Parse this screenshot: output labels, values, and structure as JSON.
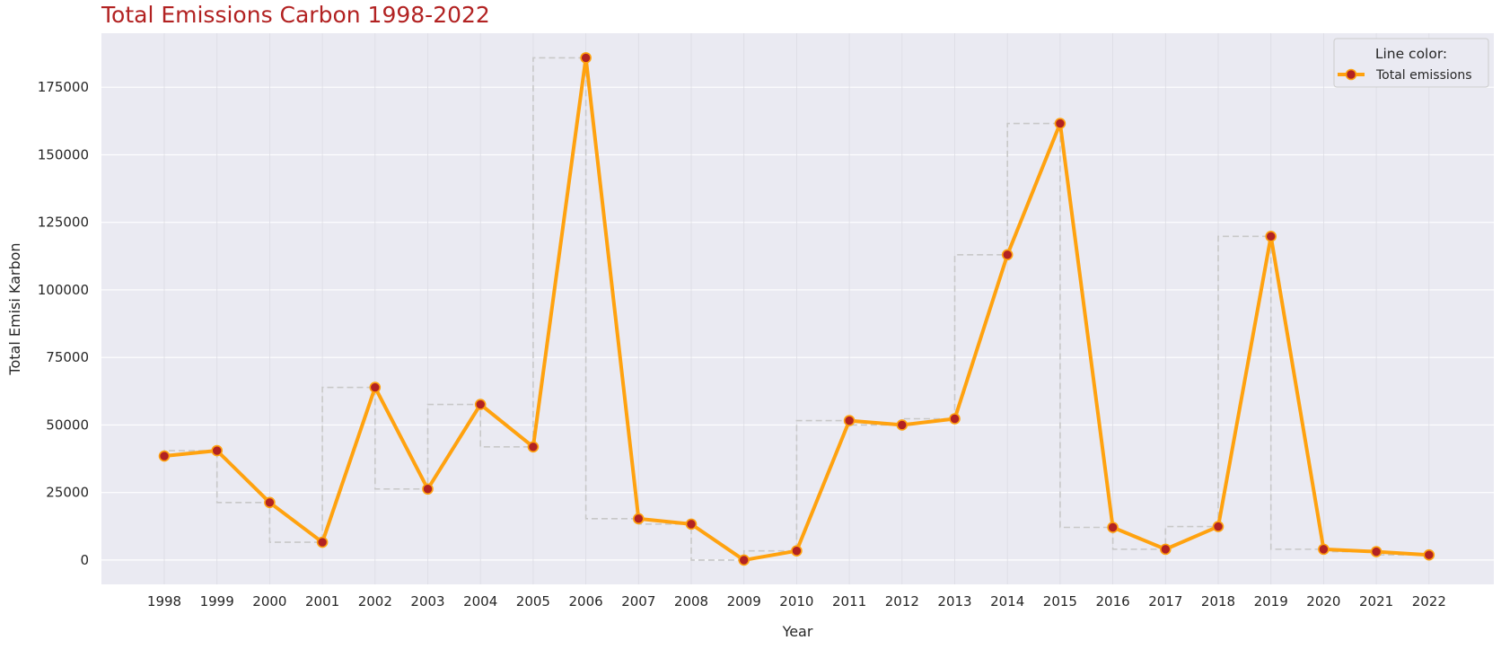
{
  "chart_data": {
    "type": "line",
    "title": "Total Emissions Carbon 1998-2022",
    "xlabel": "Year",
    "ylabel": "Total Emisi Karbon",
    "x": [
      1998,
      1999,
      2000,
      2001,
      2002,
      2003,
      2004,
      2005,
      2006,
      2007,
      2008,
      2009,
      2010,
      2011,
      2012,
      2013,
      2014,
      2015,
      2016,
      2017,
      2018,
      2019,
      2020,
      2021,
      2022
    ],
    "series": [
      {
        "name": "Total emissions",
        "values": [
          38500,
          40500,
          21300,
          6600,
          63900,
          26300,
          57600,
          41900,
          185900,
          15300,
          13300,
          0,
          3400,
          51600,
          50000,
          52300,
          113000,
          161600,
          12100,
          4000,
          12400,
          119800,
          4000,
          3100,
          1900
        ]
      }
    ],
    "step_overlay": true,
    "ylim": [
      -9000,
      195000
    ],
    "yticks": [
      0,
      25000,
      50000,
      75000,
      100000,
      125000,
      150000,
      175000
    ],
    "grid": true,
    "legend": {
      "title": "Line color:",
      "position": "top-right"
    },
    "colors": {
      "line": "#FFA20F",
      "marker_fill": "#B22222",
      "marker_edge": "#FFA20F",
      "step": "#C8C8C8",
      "background": "#EAEAF2",
      "grid": "#FFFFFF",
      "title": "#B22222"
    }
  }
}
